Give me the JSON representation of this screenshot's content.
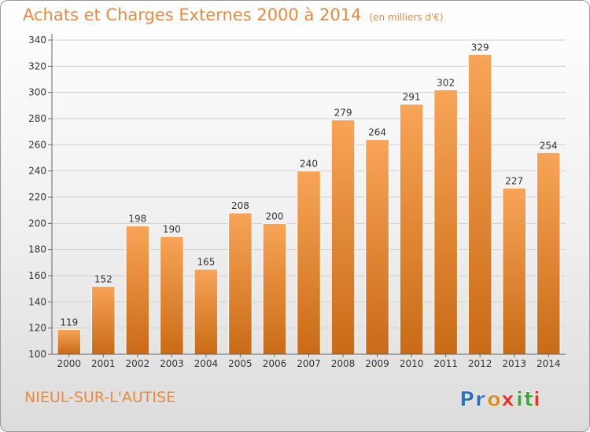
{
  "title": "Achats et Charges Externes 2000 à 2014",
  "unit_label": "(en milliers d'€)",
  "city": "NIEUL-SUR-L'AUTISE",
  "logo": {
    "text": "Proxiti",
    "letters": [
      "P",
      "r",
      "o",
      "x",
      "i",
      "t",
      "i"
    ],
    "colors": [
      "#2f6fc0",
      "#2f6fc0",
      "#e08a1e",
      "#e8321e",
      "#3aa53a",
      "#3aa53a",
      "#e8321e"
    ]
  },
  "colors": {
    "accent": "#f0883a",
    "bar_light": "#f8a457",
    "bar_dark": "#c96b16"
  },
  "chart_data": {
    "type": "bar",
    "title": "Achats et Charges Externes 2000 à 2014",
    "categories": [
      "2000",
      "2001",
      "2002",
      "2003",
      "2004",
      "2005",
      "2006",
      "2007",
      "2008",
      "2009",
      "2010",
      "2011",
      "2012",
      "2013",
      "2014"
    ],
    "values": [
      119,
      152,
      198,
      190,
      165,
      208,
      200,
      240,
      279,
      264,
      291,
      302,
      329,
      227,
      254
    ],
    "ylim": [
      100,
      340
    ],
    "yticks": [
      100,
      120,
      140,
      160,
      180,
      200,
      220,
      240,
      260,
      280,
      300,
      320,
      340
    ],
    "grid": true,
    "legend": "none"
  }
}
